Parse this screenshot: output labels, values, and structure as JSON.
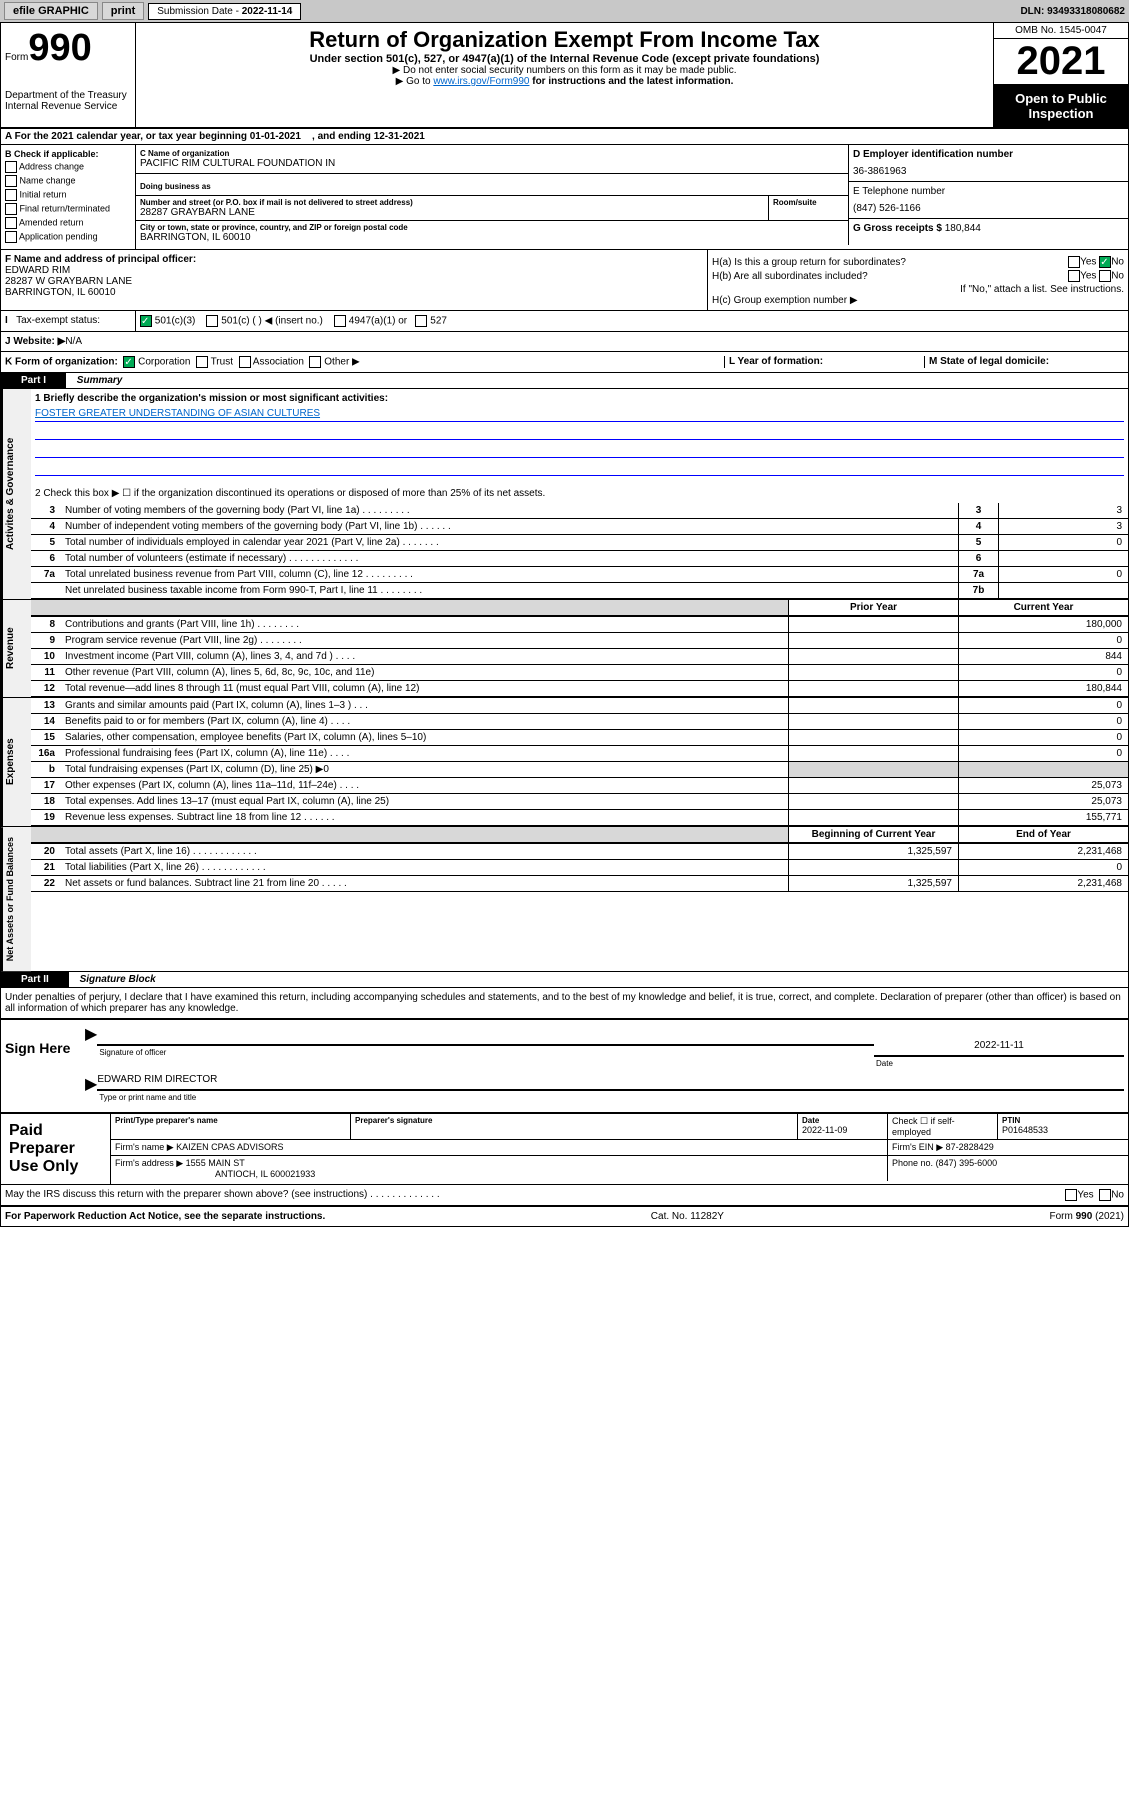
{
  "topbar": {
    "efile": "efile GRAPHIC",
    "print": "print",
    "submission_label": "Submission Date",
    "submission_date": "2022-11-14",
    "dln_label": "DLN:",
    "dln": "93493318080682"
  },
  "header": {
    "form_label": "Form",
    "form_number": "990",
    "dept": "Department of the Treasury",
    "irs": "Internal Revenue Service",
    "title": "Return of Organization Exempt From Income Tax",
    "subtitle": "Under section 501(c), 527, or 4947(a)(1) of the Internal Revenue Code (except private foundations)",
    "note1": "▶ Do not enter social security numbers on this form as it may be made public.",
    "note2_pre": "▶ Go to ",
    "note2_link": "www.irs.gov/Form990",
    "note2_post": " for instructions and the latest information.",
    "omb": "OMB No. 1545-0047",
    "year": "2021",
    "open_public": "Open to Public Inspection"
  },
  "period": {
    "text_pre": "A For the 2021 calendar year, or tax year beginning ",
    "begin": "01-01-2021",
    "text_mid": ", and ending ",
    "end": "12-31-2021"
  },
  "section_b": {
    "label": "B Check if applicable:",
    "opts": [
      "Address change",
      "Name change",
      "Initial return",
      "Final return/terminated",
      "Amended return",
      "Application pending"
    ]
  },
  "section_c": {
    "name_label": "C Name of organization",
    "name": "PACIFIC RIM CULTURAL FOUNDATION IN",
    "dba_label": "Doing business as",
    "street_label": "Number and street (or P.O. box if mail is not delivered to street address)",
    "room_label": "Room/suite",
    "street": "28287 GRAYBARN LANE",
    "city_label": "City or town, state or province, country, and ZIP or foreign postal code",
    "city": "BARRINGTON, IL  60010"
  },
  "section_d": {
    "label": "D Employer identification number",
    "value": "36-3861963"
  },
  "section_e": {
    "label": "E Telephone number",
    "value": "(847) 526-1166"
  },
  "section_g": {
    "label": "G Gross receipts $",
    "value": "180,844"
  },
  "section_f": {
    "label": "F Name and address of principal officer:",
    "name": "EDWARD RIM",
    "addr1": "28287 W GRAYBARN LANE",
    "addr2": "BARRINGTON, IL  60010"
  },
  "section_h": {
    "ha": "H(a) Is this a group return for subordinates?",
    "hb": "H(b) Are all subordinates included?",
    "hb_note": "If \"No,\" attach a list. See instructions.",
    "hc": "H(c) Group exemption number ▶",
    "yes": "Yes",
    "no": "No"
  },
  "tax_status": {
    "label": "Tax-exempt status:",
    "opt1": "501(c)(3)",
    "opt2": "501(c) (   ) ◀ (insert no.)",
    "opt3": "4947(a)(1) or",
    "opt4": "527"
  },
  "website": {
    "label": "J  Website: ▶",
    "value": "N/A"
  },
  "k": {
    "label": "K Form of organization:",
    "opts": [
      "Corporation",
      "Trust",
      "Association",
      "Other ▶"
    ]
  },
  "l": {
    "label": "L Year of formation:"
  },
  "m": {
    "label": "M State of legal domicile:"
  },
  "part1": {
    "label": "Part I",
    "title": "Summary",
    "line1_label": "1  Briefly describe the organization's mission or most significant activities:",
    "mission": "FOSTER GREATER UNDERSTANDING OF ASIAN CULTURES",
    "line2": "2   Check this box ▶ ☐  if the organization discontinued its operations or disposed of more than 25% of its net assets.",
    "governance_lines": [
      {
        "n": "3",
        "t": "Number of voting members of the governing body (Part VI, line 1a)   .    .    .    .    .    .    .    .    .",
        "c": "3",
        "v": "3"
      },
      {
        "n": "4",
        "t": "Number of independent voting members of the governing body (Part VI, line 1b)   .    .    .    .    .    .",
        "c": "4",
        "v": "3"
      },
      {
        "n": "5",
        "t": "Total number of individuals employed in calendar year 2021 (Part V, line 2a)   .    .    .    .    .    .    .",
        "c": "5",
        "v": "0"
      },
      {
        "n": "6",
        "t": "Total number of volunteers (estimate if necessary)   .    .    .    .    .    .    .    .    .    .    .    .    .",
        "c": "6",
        "v": ""
      },
      {
        "n": "7a",
        "t": "Total unrelated business revenue from Part VIII, column (C), line 12   .    .    .    .    .    .    .    .    .",
        "c": "7a",
        "v": "0"
      },
      {
        "n": "",
        "t": "Net unrelated business taxable income from Form 990-T, Part I, line 11   .    .    .    .    .    .    .    .",
        "c": "7b",
        "v": ""
      }
    ],
    "prior_label": "Prior Year",
    "current_label": "Current Year",
    "revenue_lines": [
      {
        "n": "8",
        "t": "Contributions and grants (Part VIII, line 1h)   .    .    .    .    .    .    .    .",
        "p": "",
        "c": "180,000"
      },
      {
        "n": "9",
        "t": "Program service revenue (Part VIII, line 2g)   .    .    .    .    .    .    .    .",
        "p": "",
        "c": "0"
      },
      {
        "n": "10",
        "t": "Investment income (Part VIII, column (A), lines 3, 4, and 7d )   .    .    .    .",
        "p": "",
        "c": "844"
      },
      {
        "n": "11",
        "t": "Other revenue (Part VIII, column (A), lines 5, 6d, 8c, 9c, 10c, and 11e)",
        "p": "",
        "c": "0"
      },
      {
        "n": "12",
        "t": "Total revenue—add lines 8 through 11 (must equal Part VIII, column (A), line 12)",
        "p": "",
        "c": "180,844"
      }
    ],
    "expense_lines": [
      {
        "n": "13",
        "t": "Grants and similar amounts paid (Part IX, column (A), lines 1–3 )   .    .    .",
        "p": "",
        "c": "0"
      },
      {
        "n": "14",
        "t": "Benefits paid to or for members (Part IX, column (A), line 4)   .    .    .    .",
        "p": "",
        "c": "0"
      },
      {
        "n": "15",
        "t": "Salaries, other compensation, employee benefits (Part IX, column (A), lines 5–10)",
        "p": "",
        "c": "0"
      },
      {
        "n": "16a",
        "t": "Professional fundraising fees (Part IX, column (A), line 11e)   .    .    .    .",
        "p": "",
        "c": "0"
      },
      {
        "n": "b",
        "t": "Total fundraising expenses (Part IX, column (D), line 25) ▶0",
        "p": "gray",
        "c": "gray"
      },
      {
        "n": "17",
        "t": "Other expenses (Part IX, column (A), lines 11a–11d, 11f–24e)   .    .    .    .",
        "p": "",
        "c": "25,073"
      },
      {
        "n": "18",
        "t": "Total expenses. Add lines 13–17 (must equal Part IX, column (A), line 25)",
        "p": "",
        "c": "25,073"
      },
      {
        "n": "19",
        "t": "Revenue less expenses. Subtract line 18 from line 12   .    .    .    .    .    .",
        "p": "",
        "c": "155,771"
      }
    ],
    "begin_label": "Beginning of Current Year",
    "end_label": "End of Year",
    "net_lines": [
      {
        "n": "20",
        "t": "Total assets (Part X, line 16)   .    .    .    .    .    .    .    .    .    .    .    .",
        "p": "1,325,597",
        "c": "2,231,468"
      },
      {
        "n": "21",
        "t": "Total liabilities (Part X, line 26)   .    .    .    .    .    .    .    .    .    .    .    .",
        "p": "",
        "c": "0"
      },
      {
        "n": "22",
        "t": "Net assets or fund balances. Subtract line 21 from line 20   .    .    .    .    .",
        "p": "1,325,597",
        "c": "2,231,468"
      }
    ],
    "side_labels": {
      "gov": "Activites & Governance",
      "rev": "Revenue",
      "exp": "Expenses",
      "net": "Net Assets or Fund Balances"
    }
  },
  "part2": {
    "label": "Part II",
    "title": "Signature Block",
    "declaration": "Under penalties of perjury, I declare that I have examined this return, including accompanying schedules and statements, and to the best of my knowledge and belief, it is true, correct, and complete. Declaration of preparer (other than officer) is based on all information of which preparer has any knowledge.",
    "sign_here": "Sign Here",
    "sig_officer_label": "Signature of officer",
    "sig_date_label": "Date",
    "sig_date": "2022-11-11",
    "officer_name": "EDWARD RIM  DIRECTOR",
    "officer_label": "Type or print name and title",
    "paid_prep": "Paid Preparer Use Only",
    "prep_name_label": "Print/Type preparer's name",
    "prep_sig_label": "Preparer's signature",
    "prep_date_label": "Date",
    "prep_date": "2022-11-09",
    "prep_check_label": "Check ☐ if self-employed",
    "ptin_label": "PTIN",
    "ptin": "P01648533",
    "firm_name_label": "Firm's name    ▶",
    "firm_name": "KAIZEN CPAS ADVISORS",
    "firm_ein_label": "Firm's EIN ▶",
    "firm_ein": "87-2828429",
    "firm_addr_label": "Firm's address ▶",
    "firm_addr1": "1555 MAIN ST",
    "firm_addr2": "ANTIOCH, IL  600021933",
    "phone_label": "Phone no.",
    "phone": "(847) 395-6000",
    "irs_discuss": "May the IRS discuss this return with the preparer shown above? (see instructions)   .    .    .    .    .    .    .    .    .    .    .    .    .",
    "yes": "Yes",
    "no": "No"
  },
  "footer": {
    "paperwork": "For Paperwork Reduction Act Notice, see the separate instructions.",
    "cat": "Cat. No. 11282Y",
    "form": "Form 990 (2021)"
  },
  "colors": {
    "topbar_bg": "#c8c8c8",
    "black": "#000000",
    "link": "#0066cc",
    "check": "#00aa55",
    "gray_cell": "#d8d8d8",
    "underline_blue": "#0000ff"
  }
}
